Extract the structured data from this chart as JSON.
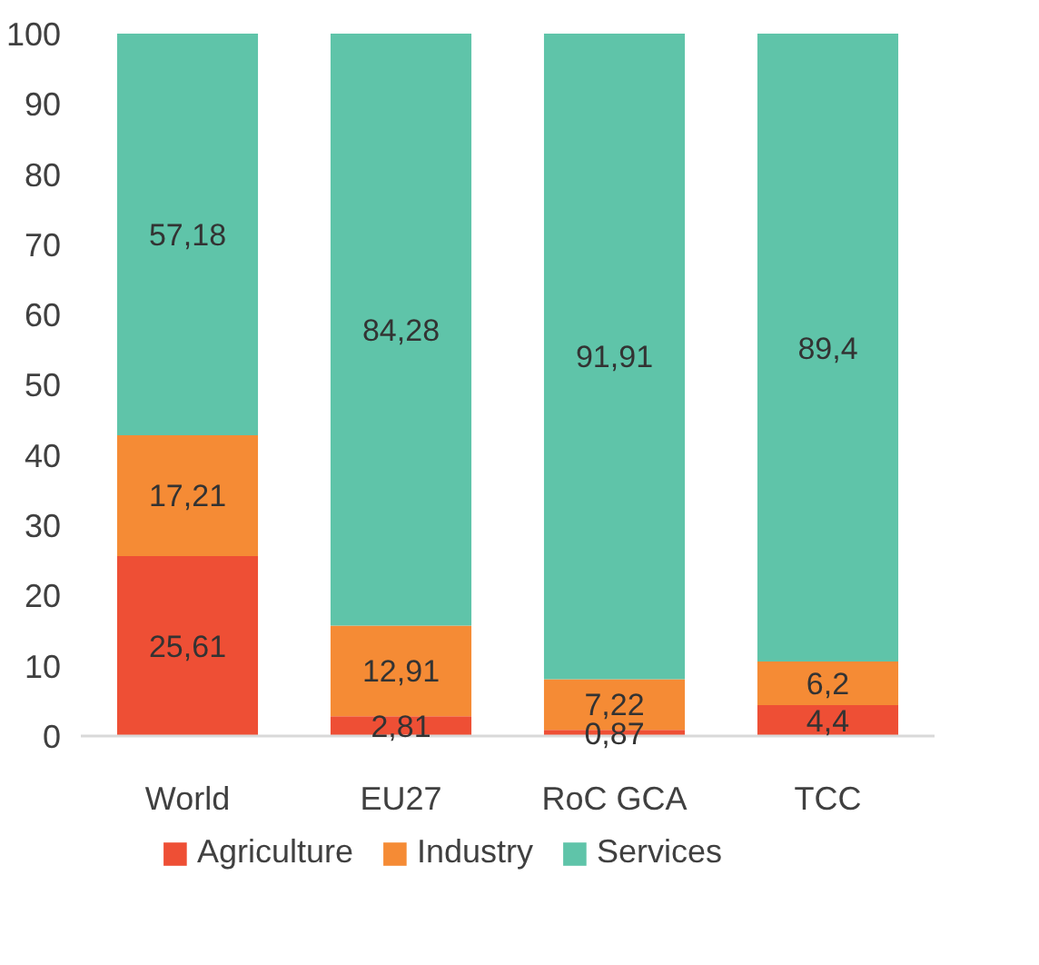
{
  "chart_data": {
    "type": "bar",
    "stacked": true,
    "categories": [
      "World",
      "EU27",
      "RoC GCA",
      "TCC"
    ],
    "series": [
      {
        "name": "Agriculture",
        "color": "#ee4f35",
        "values": [
          25.61,
          2.81,
          0.87,
          4.4
        ],
        "value_labels": [
          "25,61",
          "2,81",
          "0,87",
          "4,4"
        ]
      },
      {
        "name": "Industry",
        "color": "#f58b35",
        "values": [
          17.21,
          12.91,
          7.22,
          6.2
        ],
        "value_labels": [
          "17,21",
          "12,91",
          "7,22",
          "6,2"
        ]
      },
      {
        "name": "Services",
        "color": "#5fc4a9",
        "values": [
          57.18,
          84.28,
          91.91,
          89.4
        ],
        "value_labels": [
          "57,18",
          "84,28",
          "91,91",
          "89,4"
        ]
      }
    ],
    "ylim": [
      0,
      100
    ],
    "yticks": [
      0,
      10,
      20,
      30,
      40,
      50,
      60,
      70,
      80,
      90,
      100
    ],
    "grid": false,
    "legend": "bottom"
  }
}
